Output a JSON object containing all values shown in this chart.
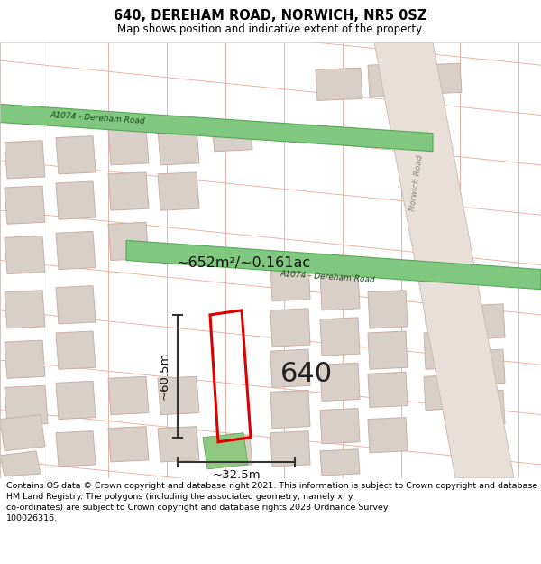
{
  "title": "640, DEREHAM ROAD, NORWICH, NR5 0SZ",
  "subtitle": "Map shows position and indicative extent of the property.",
  "footer": "Contains OS data © Crown copyright and database right 2021. This information is subject to Crown copyright and database rights 2023 and is reproduced with the permission of\nHM Land Registry. The polygons (including the associated geometry, namely x, y\nco-ordinates) are subject to Crown copyright and database rights 2023 Ordnance Survey\n100026316.",
  "title_fontsize": 10.5,
  "subtitle_fontsize": 8.5,
  "footer_fontsize": 6.8,
  "map_bg": "#ffffff",
  "bld_fill": "#d8d0c8",
  "bld_edge": "#c8b0a8",
  "street_color": "#e8a898",
  "road_green": "#80c880",
  "road_green_edge": "#58a858",
  "road_green_label": "#1a4a1a",
  "norwich_road_fill": "#e8e0d8",
  "norwich_road_edge": "#c8b8b0",
  "property_color": "#dd0000",
  "prop_label": "640",
  "area_label": "~652m²/~0.161ac",
  "width_label": "~32.5m",
  "height_label": "~60.5m",
  "road1_label": "A1074 - Dereham Road",
  "road2_label": "A1074 - Dereham Road",
  "road3_label": "Norwich Road",
  "green_patch_fill": "#90c880",
  "green_patch_edge": "#50a050"
}
